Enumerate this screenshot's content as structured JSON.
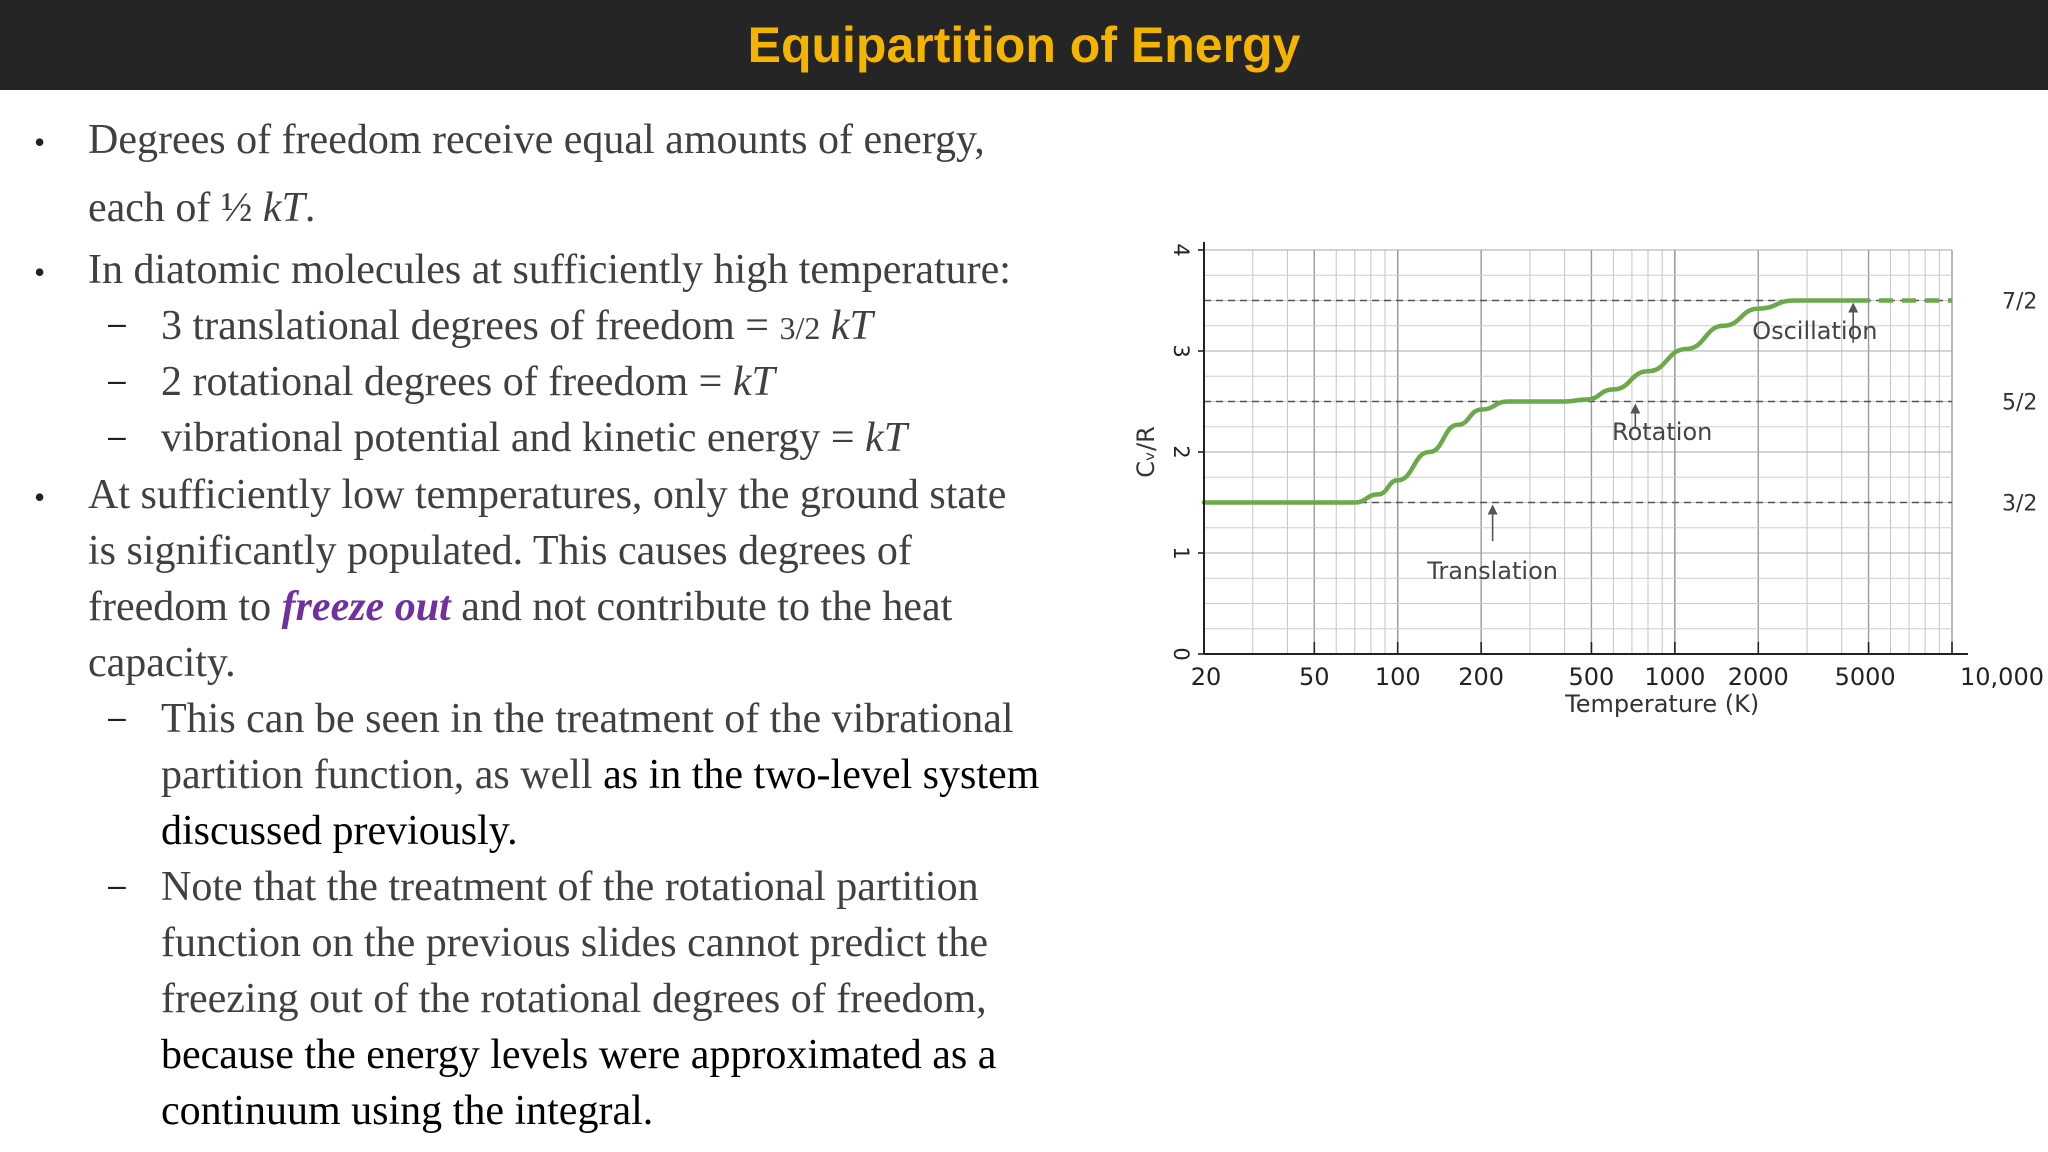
{
  "title": "Equipartition of Energy",
  "bullets": [
    {
      "text_1": "Degrees of freedom receive equal amounts of energy,",
      "text_2_pre": "each of ",
      "half": "½",
      "kT": "kT",
      "period": "."
    },
    {
      "text": "In diatomic molecules at sufficiently high temperature:",
      "subs": [
        {
          "pre": "3 translational degrees of freedom = ",
          "frac": "3/2",
          "post": "kT"
        },
        {
          "pre": "2 rotational degrees of freedom = ",
          "post": "kT"
        },
        {
          "pre": "vibrational potential and kinetic energy = ",
          "post": "kT"
        }
      ]
    },
    {
      "line_1": "At sufficiently low temperatures, only the ground state",
      "line_2": "is significantly populated. This causes degrees of",
      "line_3_pre": "freedom to ",
      "freeze": "freeze out",
      "line_3_post": " and not contribute to the heat",
      "line_4": "capacity.",
      "subs": [
        {
          "line_1": "This can be seen in the treatment of the vibrational",
          "line_2_pre": "partition function, as well ",
          "line_2_post": "as in the two-level system",
          "line_3": "discussed previously."
        },
        {
          "line_1": "Note that the treatment of the rotational partition",
          "line_2": "function on the previous slides cannot predict the",
          "line_3": "freezing out of the rotational degrees of freedom,",
          "line_4": "because the energy levels were approximated as a",
          "line_5": "continuum using the integral."
        }
      ]
    }
  ],
  "colors": {
    "title_bg": "#252525",
    "title_text": "#f5b400",
    "freeze": "#7030a0",
    "curve": "#6aaa4a"
  },
  "chart_data": {
    "type": "line",
    "xlabel": "Temperature (K)",
    "ylabel": "Cᵥ/R",
    "x_scale": "log",
    "xlim": [
      20,
      10000
    ],
    "ylim": [
      0,
      4
    ],
    "grid": true,
    "x_ticks": [
      20,
      50,
      100,
      200,
      500,
      1000,
      2000,
      5000,
      10000
    ],
    "x_tick_labels": [
      "20",
      "50",
      "100",
      "200",
      "500",
      "1000",
      "2000",
      "5000",
      "10,000"
    ],
    "y_ticks": [
      0,
      1,
      2,
      3,
      4
    ],
    "y_tick_labels": [
      "0",
      "1",
      "2",
      "3",
      "4"
    ],
    "right_labels": [
      {
        "value": 3.5,
        "text": "7/2"
      },
      {
        "value": 2.5,
        "text": "5/2"
      },
      {
        "value": 1.5,
        "text": "3/2"
      }
    ],
    "annotations": [
      {
        "text": "Translation",
        "x": 220,
        "y": 0.82
      },
      {
        "text": "Rotation",
        "x": 900,
        "y": 2.2
      },
      {
        "text": "Oscillation",
        "x": 3200,
        "y": 3.2
      }
    ],
    "series": [
      {
        "x": [
          20,
          70,
          85,
          100,
          130,
          165,
          200,
          250,
          400,
          480,
          600,
          800,
          1100,
          1500,
          2000,
          2700,
          3500,
          4500
        ],
        "y": [
          1.5,
          1.5,
          1.58,
          1.72,
          2.0,
          2.27,
          2.42,
          2.5,
          2.5,
          2.52,
          2.62,
          2.8,
          3.02,
          3.25,
          3.42,
          3.5,
          3.5,
          3.5
        ]
      },
      {
        "x": [
          4500,
          10000
        ],
        "y": [
          3.5,
          3.5
        ],
        "style": "dashed"
      }
    ]
  }
}
